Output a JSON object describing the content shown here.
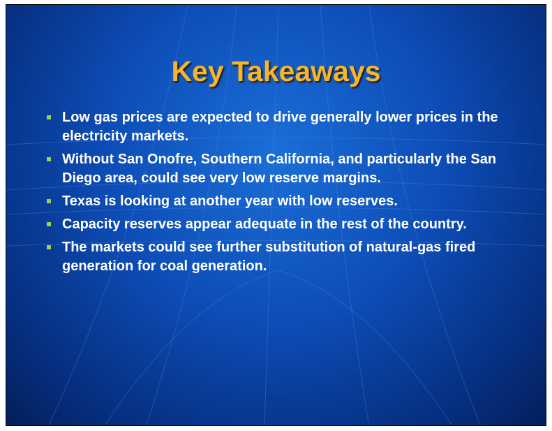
{
  "slide": {
    "title": "Key Takeaways",
    "bullets": [
      "Low gas prices are expected to drive generally lower prices in the electricity markets.",
      "Without San Onofre, Southern California, and particularly the San Diego area, could see very low reserve margins.",
      "Texas is looking at another year with low reserves.",
      "Capacity reserves appear adequate in the rest of the country.",
      "The markets could see further substitution of natural-gas fired generation for coal generation."
    ]
  }
}
